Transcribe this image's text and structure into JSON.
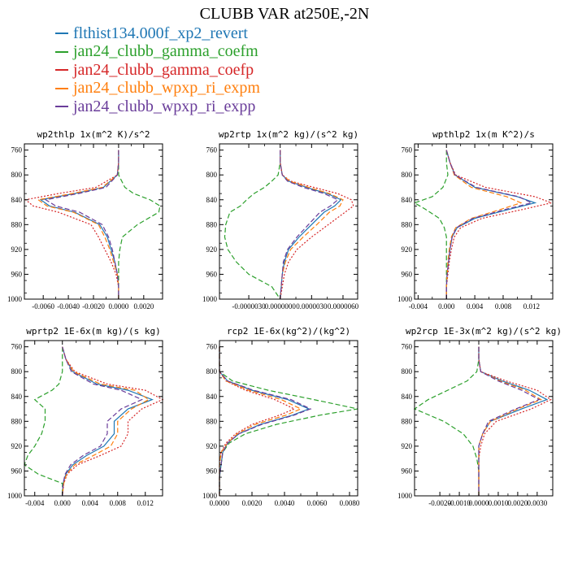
{
  "figure": {
    "title": "CLUBB VAR at250E,-2N"
  },
  "legend": [
    {
      "label": "flthist134.000f_xp2_revert",
      "color": "#1f77b4"
    },
    {
      "label": "jan24_clubb_gamma_coefm",
      "color": "#2ca02c"
    },
    {
      "label": "jan24_clubb_gamma_coefp",
      "color": "#d62728"
    },
    {
      "label": "jan24_clubb_wpxp_ri_expm",
      "color": "#ff7f0e"
    },
    {
      "label": "jan24_clubb_wpxp_ri_expp",
      "color": "#6a3d9a"
    }
  ],
  "chart_data": [
    {
      "type": "line",
      "title": "wp2thlp  1x(m^2 K)/s^2",
      "xlim": [
        -0.0075,
        0.0035
      ],
      "ylim": [
        1000,
        750
      ],
      "xticks": [
        -0.006,
        -0.004,
        -0.002,
        0.0,
        0.002
      ],
      "xtick_labels": [
        "-0.0060",
        "-0.0040",
        "-0.0020",
        "0.0000",
        "0.0020"
      ],
      "yticks": [
        760,
        800,
        840,
        880,
        920,
        960,
        1000
      ],
      "ytick_labels": [
        "760",
        "800",
        "840",
        "880",
        "920",
        "960",
        "1000"
      ],
      "y": [
        760,
        780,
        800,
        820,
        830,
        840,
        850,
        860,
        880,
        900,
        920,
        940,
        960,
        980,
        1000
      ],
      "series": [
        {
          "values": [
            0.0,
            0.0,
            -0.0001,
            -0.0012,
            -0.0035,
            -0.0062,
            -0.0055,
            -0.0035,
            -0.0015,
            -0.0009,
            -0.0006,
            -0.0003,
            -0.0001,
            0.0,
            0.0
          ],
          "color": "#1f77b4",
          "dash": ""
        },
        {
          "values": [
            0.0,
            0.0,
            0.0,
            0.0005,
            0.0012,
            0.0025,
            0.0033,
            0.0032,
            0.0015,
            0.0003,
            0.0001,
            0.0,
            0.0,
            0.0,
            0.0
          ],
          "color": "#2ca02c",
          "dash": "6,3"
        },
        {
          "values": [
            0.0,
            0.0,
            -0.0001,
            -0.0018,
            -0.0048,
            -0.0074,
            -0.0068,
            -0.0048,
            -0.0022,
            -0.0016,
            -0.0011,
            -0.0006,
            -0.0002,
            0.0,
            0.0
          ],
          "color": "#d62728",
          "dash": "2,2"
        },
        {
          "values": [
            0.0,
            0.0,
            -0.0001,
            -0.0013,
            -0.0037,
            -0.0064,
            -0.0057,
            -0.0036,
            -0.0016,
            -0.0011,
            -0.0007,
            -0.0004,
            -0.0001,
            0.0,
            0.0
          ],
          "color": "#ff7f0e",
          "dash": "6,3"
        },
        {
          "values": [
            0.0,
            0.0,
            -0.0001,
            -0.001,
            -0.0032,
            -0.0058,
            -0.005,
            -0.0031,
            -0.0013,
            -0.0008,
            -0.0005,
            -0.0003,
            -0.0001,
            0.0,
            0.0
          ],
          "color": "#6a3d9a",
          "dash": "6,3"
        }
      ]
    },
    {
      "type": "line",
      "title": "wp2rtp  1x(m^2 kg)/(s^2 kg)",
      "xlim": [
        -5.8e-06,
        7.4e-06
      ],
      "ylim": [
        1000,
        750
      ],
      "xticks": [
        -3e-06,
        0.0,
        3e-06,
        6e-06
      ],
      "xtick_labels": [
        "-0.0000030",
        "0.0000000",
        "0.0000030",
        "0.0000060"
      ],
      "yticks": [
        760,
        800,
        840,
        880,
        920,
        960,
        1000
      ],
      "ytick_labels": [
        "760",
        "800",
        "840",
        "880",
        "920",
        "960",
        "1000"
      ],
      "y": [
        760,
        780,
        800,
        810,
        820,
        830,
        840,
        850,
        860,
        880,
        900,
        920,
        940,
        960,
        980,
        1000
      ],
      "series": [
        {
          "values": [
            0.0,
            0.0,
            2e-07,
            8e-07,
            2.5e-06,
            4.5e-06,
            5.8e-06,
            5.2e-06,
            4.2e-06,
            3e-06,
            1.8e-06,
            8e-07,
            4e-07,
            2e-07,
            1e-07,
            0.0
          ],
          "color": "#1f77b4",
          "dash": ""
        },
        {
          "values": [
            0.0,
            0.0,
            -2e-07,
            -8e-07,
            -1.5e-06,
            -2.5e-06,
            -3.2e-06,
            -3.8e-06,
            -4.8e-06,
            -5.2e-06,
            -5.3e-06,
            -5e-06,
            -4.2e-06,
            -3e-06,
            -8e-07,
            0.0
          ],
          "color": "#2ca02c",
          "dash": "6,3"
        },
        {
          "values": [
            0.0,
            0.0,
            2e-07,
            1e-06,
            3.2e-06,
            5.5e-06,
            6.8e-06,
            7e-06,
            6.2e-06,
            4.6e-06,
            3e-06,
            1.6e-06,
            8e-07,
            4e-07,
            2e-07,
            0.0
          ],
          "color": "#d62728",
          "dash": "2,2"
        },
        {
          "values": [
            0.0,
            0.0,
            2e-07,
            9e-07,
            2.7e-06,
            4.7e-06,
            6e-06,
            5.7e-06,
            4.7e-06,
            3.5e-06,
            2.2e-06,
            1e-06,
            5e-07,
            2e-07,
            1e-07,
            0.0
          ],
          "color": "#ff7f0e",
          "dash": "6,3"
        },
        {
          "values": [
            0.0,
            0.0,
            2e-07,
            7e-07,
            2.2e-06,
            4.2e-06,
            5.5e-06,
            4.8e-06,
            3.8e-06,
            2.7e-06,
            1.6e-06,
            7e-07,
            3e-07,
            2e-07,
            1e-07,
            0.0
          ],
          "color": "#6a3d9a",
          "dash": "6,3"
        }
      ]
    },
    {
      "type": "line",
      "title": "wpthlp2  1x(m K^2)/s",
      "xlim": [
        -0.0045,
        0.015
      ],
      "ylim": [
        1000,
        750
      ],
      "xticks": [
        -0.004,
        0.0,
        0.004,
        0.008,
        0.012
      ],
      "xtick_labels": [
        "-0.004",
        "0.000",
        "0.004",
        "0.008",
        "0.012"
      ],
      "yticks": [
        760,
        800,
        840,
        880,
        920,
        960,
        1000
      ],
      "ytick_labels": [
        "760",
        "800",
        "840",
        "880",
        "920",
        "960",
        "1000"
      ],
      "y": [
        760,
        780,
        800,
        820,
        835,
        845,
        855,
        870,
        885,
        900,
        920,
        940,
        960,
        980,
        1000
      ],
      "series": [
        {
          "values": [
            0.0,
            0.0005,
            0.0012,
            0.004,
            0.01,
            0.0125,
            0.009,
            0.004,
            0.0015,
            0.0008,
            0.0005,
            0.0003,
            0.0001,
            0.0,
            0.0
          ],
          "color": "#1f77b4",
          "dash": ""
        },
        {
          "values": [
            0.0,
            0.0,
            0.0002,
            -0.0005,
            -0.002,
            -0.0045,
            -0.003,
            -0.001,
            -0.0003,
            0.0,
            0.0,
            0.0,
            0.0,
            0.0,
            0.0
          ],
          "color": "#2ca02c",
          "dash": "6,3"
        },
        {
          "values": [
            0.0,
            0.0005,
            0.0013,
            0.0055,
            0.0125,
            0.0148,
            0.011,
            0.005,
            0.002,
            0.0011,
            0.0007,
            0.0004,
            0.0002,
            0.0,
            0.0
          ],
          "color": "#d62728",
          "dash": "2,2"
        },
        {
          "values": [
            0.0,
            0.0005,
            0.0011,
            0.0035,
            0.0085,
            0.0105,
            0.0078,
            0.0035,
            0.0013,
            0.0007,
            0.0004,
            0.0002,
            0.0001,
            0.0,
            0.0
          ],
          "color": "#ff7f0e",
          "dash": "6,3"
        },
        {
          "values": [
            0.0,
            0.0005,
            0.0012,
            0.0042,
            0.0102,
            0.012,
            0.0085,
            0.0037,
            0.0014,
            0.0008,
            0.0005,
            0.0003,
            0.0001,
            0.0,
            0.0
          ],
          "color": "#6a3d9a",
          "dash": "6,3"
        }
      ]
    },
    {
      "type": "line",
      "title": "wprtp2  1E-6x(m kg)/(s kg)",
      "xlim": [
        -0.0055,
        0.0145
      ],
      "ylim": [
        1000,
        750
      ],
      "xticks": [
        -0.004,
        0.0,
        0.004,
        0.008,
        0.012
      ],
      "xtick_labels": [
        "-0.004",
        "0.000",
        "0.004",
        "0.008",
        "0.012"
      ],
      "yticks": [
        760,
        800,
        840,
        880,
        920,
        960,
        1000
      ],
      "ytick_labels": [
        "760",
        "800",
        "840",
        "880",
        "920",
        "960",
        "1000"
      ],
      "y": [
        760,
        780,
        800,
        820,
        830,
        845,
        860,
        880,
        900,
        920,
        935,
        950,
        965,
        980,
        1000
      ],
      "series": [
        {
          "values": [
            0.0,
            0.0005,
            0.0015,
            0.005,
            0.0095,
            0.013,
            0.0095,
            0.0075,
            0.0075,
            0.006,
            0.0035,
            0.0015,
            0.0005,
            0.0001,
            0.0
          ],
          "color": "#1f77b4",
          "dash": ""
        },
        {
          "values": [
            0.0,
            0.0,
            0.0,
            -0.0005,
            -0.0015,
            -0.004,
            -0.0025,
            -0.0025,
            -0.003,
            -0.004,
            -0.005,
            -0.0055,
            -0.0035,
            0.0,
            0.0
          ],
          "color": "#2ca02c",
          "dash": "6,3"
        },
        {
          "values": [
            0.0,
            0.0005,
            0.0018,
            0.0065,
            0.012,
            0.0145,
            0.0115,
            0.0095,
            0.0095,
            0.0085,
            0.0055,
            0.0022,
            0.0007,
            0.0002,
            0.0
          ],
          "color": "#d62728",
          "dash": "2,2"
        },
        {
          "values": [
            0.0,
            0.0005,
            0.0016,
            0.0055,
            0.0105,
            0.0125,
            0.01,
            0.008,
            0.008,
            0.007,
            0.0045,
            0.0018,
            0.0006,
            0.0002,
            0.0
          ],
          "color": "#ff7f0e",
          "dash": "6,3"
        },
        {
          "values": [
            0.0,
            0.0005,
            0.0013,
            0.0045,
            0.0085,
            0.0115,
            0.0085,
            0.0065,
            0.0065,
            0.0055,
            0.003,
            0.0012,
            0.0004,
            0.0001,
            0.0
          ],
          "color": "#6a3d9a",
          "dash": "6,3"
        }
      ]
    },
    {
      "type": "line",
      "title": "rcp2  1E-6x(kg^2)/(kg^2)",
      "xlim": [
        0.0,
        0.0085
      ],
      "ylim": [
        1000,
        750
      ],
      "xticks": [
        0.0,
        0.002,
        0.004,
        0.006,
        0.008
      ],
      "xtick_labels": [
        "0.0000",
        "0.0020",
        "0.0040",
        "0.0060",
        "0.0080"
      ],
      "yticks": [
        760,
        800,
        840,
        880,
        920,
        960,
        1000
      ],
      "ytick_labels": [
        "760",
        "800",
        "840",
        "880",
        "920",
        "960",
        "1000"
      ],
      "y": [
        760,
        780,
        800,
        815,
        830,
        845,
        860,
        870,
        885,
        900,
        915,
        930,
        950,
        970,
        1000
      ],
      "series": [
        {
          "values": [
            0.0,
            0.0,
            0.0,
            0.0005,
            0.002,
            0.0042,
            0.0055,
            0.0045,
            0.0025,
            0.0012,
            0.0005,
            0.0002,
            0.0001,
            0.0,
            0.0
          ],
          "color": "#1f77b4",
          "dash": ""
        },
        {
          "values": [
            0.0,
            0.0,
            0.0,
            0.0008,
            0.003,
            0.0058,
            0.0085,
            0.0062,
            0.0035,
            0.0016,
            0.0006,
            0.0002,
            0.0001,
            0.0,
            0.0
          ],
          "color": "#2ca02c",
          "dash": "6,3"
        },
        {
          "values": [
            0.0,
            0.0,
            0.0,
            0.0004,
            0.0016,
            0.0034,
            0.0046,
            0.0037,
            0.002,
            0.001,
            0.0004,
            0.0001,
            0.0,
            0.0,
            0.0
          ],
          "color": "#d62728",
          "dash": "2,2"
        },
        {
          "values": [
            0.0,
            0.0,
            0.0,
            0.0004,
            0.0018,
            0.0038,
            0.005,
            0.0041,
            0.0022,
            0.0011,
            0.0005,
            0.0001,
            0.0,
            0.0,
            0.0
          ],
          "color": "#ff7f0e",
          "dash": "6,3"
        },
        {
          "values": [
            0.0,
            0.0,
            0.0,
            0.0005,
            0.0021,
            0.0044,
            0.0056,
            0.0046,
            0.0026,
            0.0012,
            0.0005,
            0.0002,
            0.0001,
            0.0,
            0.0
          ],
          "color": "#6a3d9a",
          "dash": "6,3"
        }
      ]
    },
    {
      "type": "line",
      "title": "wp2rcp  1E-3x(m^2 kg)/(s^2 kg)",
      "xlim": [
        -0.0033,
        0.0038
      ],
      "ylim": [
        1000,
        750
      ],
      "xticks": [
        -0.002,
        -0.001,
        0.0,
        0.001,
        0.002,
        0.003
      ],
      "xtick_labels": [
        "-0.0020",
        "-0.0010",
        "0.0000",
        "0.0010",
        "0.0020",
        "0.0030"
      ],
      "yticks": [
        760,
        800,
        840,
        880,
        920,
        960,
        1000
      ],
      "ytick_labels": [
        "760",
        "800",
        "840",
        "880",
        "920",
        "960",
        "1000"
      ],
      "y": [
        760,
        780,
        800,
        815,
        830,
        845,
        860,
        880,
        900,
        920,
        940,
        960,
        980,
        1000
      ],
      "series": [
        {
          "values": [
            0.0,
            0.0,
            0.0001,
            0.0012,
            0.0026,
            0.0035,
            0.0022,
            0.0006,
            0.0002,
            0.0,
            0.0,
            0.0,
            0.0,
            0.0
          ],
          "color": "#1f77b4",
          "dash": ""
        },
        {
          "values": [
            0.0,
            0.0,
            -0.0001,
            -0.0006,
            -0.0016,
            -0.0026,
            -0.0033,
            -0.0018,
            -0.0008,
            -0.0003,
            -0.0001,
            0.0,
            0.0,
            0.0
          ],
          "color": "#2ca02c",
          "dash": "6,3"
        },
        {
          "values": [
            0.0,
            0.0,
            0.0001,
            0.0014,
            0.003,
            0.0037,
            0.0027,
            0.0009,
            0.0003,
            0.0001,
            0.0,
            0.0,
            0.0,
            0.0
          ],
          "color": "#d62728",
          "dash": "2,2"
        },
        {
          "values": [
            0.0,
            0.0,
            0.0001,
            0.0011,
            0.0024,
            0.0032,
            0.002,
            0.0006,
            0.0002,
            0.0,
            0.0,
            0.0,
            0.0,
            0.0
          ],
          "color": "#ff7f0e",
          "dash": "6,3"
        },
        {
          "values": [
            0.0,
            0.0,
            0.0001,
            0.001,
            0.0022,
            0.0031,
            0.0019,
            0.0005,
            0.0002,
            0.0,
            0.0,
            0.0,
            0.0,
            0.0
          ],
          "color": "#6a3d9a",
          "dash": "6,3"
        }
      ]
    }
  ]
}
